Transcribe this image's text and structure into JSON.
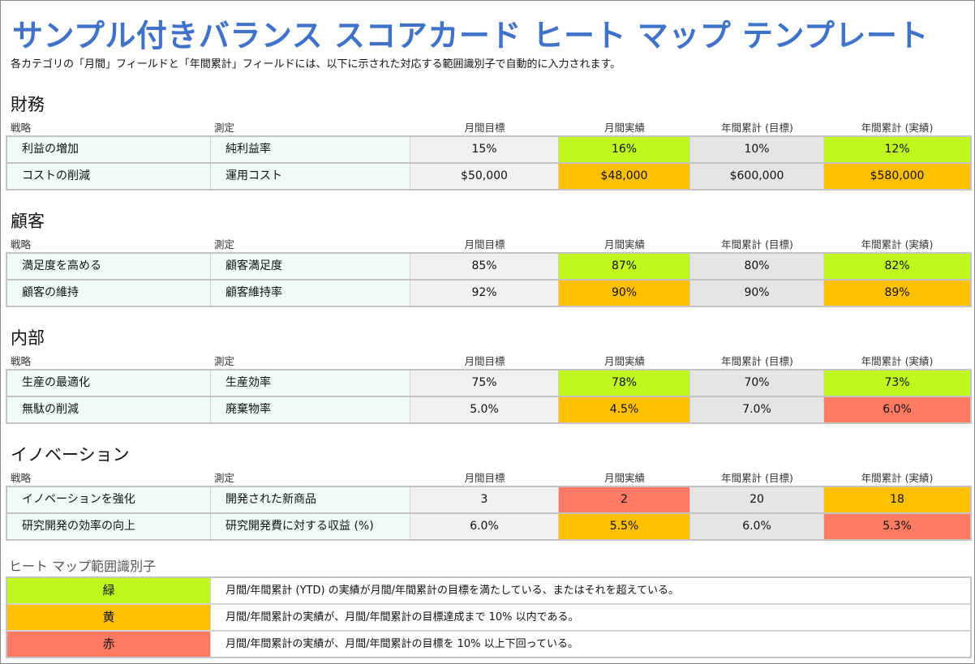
{
  "title": "サンプル付きバランス スコアカード ヒート マップ テンプレート",
  "subtitle": "各カテゴリの「月間」フィールドと「年間累計」フィールドには、以下に示された対応する範囲識別子で自動的に入力されます。",
  "colors": {
    "green": "#bff71f",
    "yellow": "#ffc000",
    "red": "#ff7a63",
    "title": "#3f72c8"
  },
  "headers": [
    "戦略",
    "測定",
    "月間目標",
    "月間実績",
    "年間累計 (目標)",
    "年間累計 (実績)"
  ],
  "sections": [
    {
      "name": "財務",
      "rows": [
        {
          "strategy": "利益の増加",
          "measure": "純利益率",
          "m_target": "15%",
          "m_actual": "16%",
          "m_status": "green",
          "y_target": "10%",
          "y_actual": "12%",
          "y_status": "green"
        },
        {
          "strategy": "コストの削減",
          "measure": "運用コスト",
          "m_target": "$50,000",
          "m_actual": "$48,000",
          "m_status": "yellow",
          "y_target": "$600,000",
          "y_actual": "$580,000",
          "y_status": "yellow"
        }
      ]
    },
    {
      "name": "顧客",
      "rows": [
        {
          "strategy": "満足度を高める",
          "measure": "顧客満足度",
          "m_target": "85%",
          "m_actual": "87%",
          "m_status": "green",
          "y_target": "80%",
          "y_actual": "82%",
          "y_status": "green"
        },
        {
          "strategy": "顧客の維持",
          "measure": "顧客維持率",
          "m_target": "92%",
          "m_actual": "90%",
          "m_status": "yellow",
          "y_target": "90%",
          "y_actual": "89%",
          "y_status": "yellow"
        }
      ]
    },
    {
      "name": "内部",
      "rows": [
        {
          "strategy": "生産の最適化",
          "measure": "生産効率",
          "m_target": "75%",
          "m_actual": "78%",
          "m_status": "green",
          "y_target": "70%",
          "y_actual": "73%",
          "y_status": "green"
        },
        {
          "strategy": "無駄の削減",
          "measure": "廃棄物率",
          "m_target": "5.0%",
          "m_actual": "4.5%",
          "m_status": "yellow",
          "y_target": "7.0%",
          "y_actual": "6.0%",
          "y_status": "red"
        }
      ]
    },
    {
      "name": "イノベーション",
      "rows": [
        {
          "strategy": "イノベーションを強化",
          "measure": "開発された新商品",
          "m_target": "3",
          "m_actual": "2",
          "m_status": "red",
          "y_target": "20",
          "y_actual": "18",
          "y_status": "yellow"
        },
        {
          "strategy": "研究開発の効率の向上",
          "measure": "研究開発費に対する収益 (%)",
          "m_target": "6.0%",
          "m_actual": "5.5%",
          "m_status": "yellow",
          "y_target": "6.0%",
          "y_actual": "5.3%",
          "y_status": "red"
        }
      ]
    }
  ],
  "legend": {
    "title": "ヒート マップ範囲識別子",
    "items": [
      {
        "label": "緑",
        "status": "green",
        "desc": "月間/年間累計 (YTD) の実績が月間/年間累計の目標を満たしている、またはそれを超えている。"
      },
      {
        "label": "黄",
        "status": "yellow",
        "desc": "月間/年間累計の実績が、月間/年間累計の目標達成まで 10% 以内である。"
      },
      {
        "label": "赤",
        "status": "red",
        "desc": "月間/年間累計の実績が、月間/年間累計の目標を 10% 以上下回っている。"
      }
    ]
  }
}
